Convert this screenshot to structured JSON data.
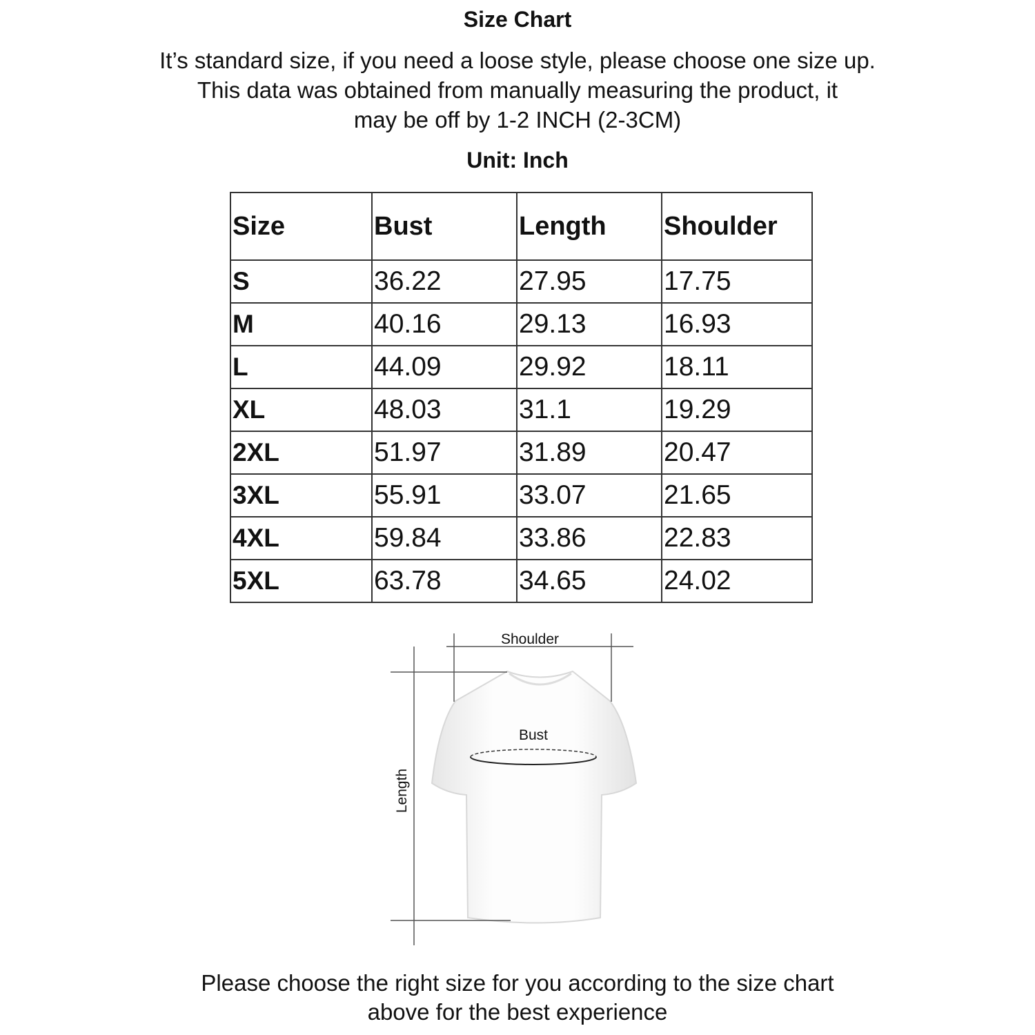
{
  "title": "Size Chart",
  "subtitle_lines": [
    "It’s standard size, if you need a loose style, please choose one size up.",
    "This data was obtained from manually measuring the product, it",
    "may be off by 1-2 INCH (2-3CM)"
  ],
  "unit": "Unit: Inch",
  "table": {
    "headers": [
      "Size",
      "Bust",
      "Length",
      "Shoulder"
    ],
    "rows": [
      [
        "S",
        "36.22",
        "27.95",
        "17.75"
      ],
      [
        "M",
        "40.16",
        "29.13",
        "16.93"
      ],
      [
        "L",
        "44.09",
        "29.92",
        "18.11"
      ],
      [
        "XL",
        "48.03",
        "31.1",
        "19.29"
      ],
      [
        "2XL",
        "51.97",
        "31.89",
        "20.47"
      ],
      [
        "3XL",
        "55.91",
        "33.07",
        "21.65"
      ],
      [
        "4XL",
        "59.84",
        "33.86",
        "22.83"
      ],
      [
        "5XL",
        "63.78",
        "34.65",
        "24.02"
      ]
    ]
  },
  "diagram": {
    "shoulder_label": "Shoulder",
    "bust_label": "Bust",
    "length_label": "Length"
  },
  "footer_lines": [
    "Please choose the right size for you according to the size chart",
    "above for the best experience"
  ]
}
